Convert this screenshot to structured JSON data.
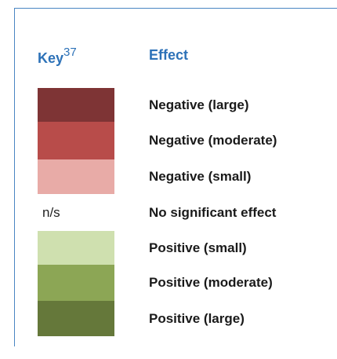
{
  "header": {
    "key": "Key",
    "key_note": "37",
    "effect": "Effect"
  },
  "rows": [
    {
      "color": "#7e3435",
      "effect": "Negative (large)"
    },
    {
      "color": "#b84c4a",
      "effect": "Negative (moderate)"
    },
    {
      "color": "#e8aba7",
      "effect": "Negative (small)"
    },
    {
      "label": "n/s",
      "effect": "No significant effect"
    },
    {
      "color": "#cfe0af",
      "effect": "Positive (small)"
    },
    {
      "color": "#8ca655",
      "effect": "Positive (moderate)"
    },
    {
      "color": "#65783a",
      "effect": "Positive (large)"
    }
  ]
}
